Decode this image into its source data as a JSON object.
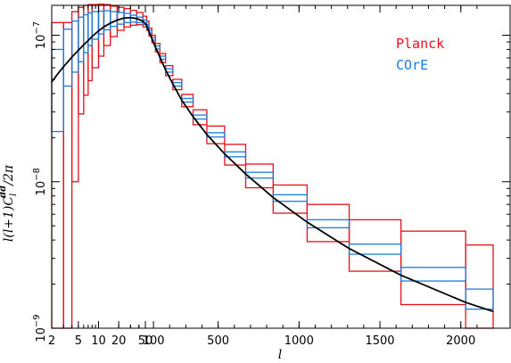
{
  "chart_data": {
    "type": "line",
    "xlabel": "l",
    "ylabel": "l(l+1)C_l^dd/2π",
    "ylabel_parts": {
      "main": "l(l+1)C",
      "sub": "l",
      "sup": "dd",
      "tail": "/2π"
    },
    "x_scale": "piecewise: log for l<50, linear for l>=50",
    "y_scale": "log",
    "xlim": [
      2,
      2200
    ],
    "ylim": [
      1e-09,
      1.6e-07
    ],
    "x_ticks": [
      {
        "value": 2,
        "label": "2"
      },
      {
        "value": 5,
        "label": "5"
      },
      {
        "value": 10,
        "label": "10"
      },
      {
        "value": 20,
        "label": "20"
      },
      {
        "value": 50,
        "label": "50"
      },
      {
        "value": 100,
        "label": "100"
      },
      {
        "value": 500,
        "label": "500"
      },
      {
        "value": 1000,
        "label": "1000"
      },
      {
        "value": 1500,
        "label": "1500"
      },
      {
        "value": 2000,
        "label": "2000"
      }
    ],
    "y_ticks": [
      {
        "value": 1e-09,
        "base": "10",
        "exp": "−9"
      },
      {
        "value": 1e-08,
        "base": "10",
        "exp": "−8"
      },
      {
        "value": 1e-07,
        "base": "10",
        "exp": "−7"
      }
    ],
    "grid": false,
    "legend": {
      "placement": "top-right"
    },
    "colors": {
      "planck": "#e8101a",
      "core": "#1a7de0",
      "theory": "#000000"
    },
    "series": [
      {
        "name": "Planck",
        "kind": "error-boxes",
        "boxes": [
          {
            "x": [
              2,
              3
            ],
            "y": [
              1e-09,
              1.22e-07
            ]
          },
          {
            "x": [
              3,
              4
            ],
            "y": [
              1e-09,
              1.22e-07
            ]
          },
          {
            "x": [
              4,
              5
            ],
            "y": [
              1e-08,
              1.45e-07
            ]
          },
          {
            "x": [
              5,
              6
            ],
            "y": [
              2.9e-08,
              1.55e-07
            ]
          },
          {
            "x": [
              6,
              7
            ],
            "y": [
              3.9e-08,
              1.6e-07
            ]
          },
          {
            "x": [
              7,
              8
            ],
            "y": [
              4.9e-08,
              1.62e-07
            ]
          },
          {
            "x": [
              8,
              10
            ],
            "y": [
              6e-08,
              1.62e-07
            ]
          },
          {
            "x": [
              10,
              12
            ],
            "y": [
              7.2e-08,
              1.63e-07
            ]
          },
          {
            "x": [
              12,
              15
            ],
            "y": [
              8.5e-08,
              1.62e-07
            ]
          },
          {
            "x": [
              15,
              19
            ],
            "y": [
              9.8e-08,
              1.58e-07
            ]
          },
          {
            "x": [
              19,
              24
            ],
            "y": [
              1.08e-07,
              1.55e-07
            ]
          },
          {
            "x": [
              24,
              30
            ],
            "y": [
              1.14e-07,
              1.52e-07
            ]
          },
          {
            "x": [
              30,
              37
            ],
            "y": [
              1.17e-07,
              1.48e-07
            ]
          },
          {
            "x": [
              37,
              46
            ],
            "y": [
              1.18e-07,
              1.43e-07
            ]
          },
          {
            "x": [
              46,
              58
            ],
            "y": [
              1.14e-07,
              1.35e-07
            ]
          },
          {
            "x": [
              58,
              72
            ],
            "y": [
              1.08e-07,
              1.25e-07
            ]
          },
          {
            "x": [
              72,
              90
            ],
            "y": [
              9.9e-08,
              1.12e-07
            ]
          },
          {
            "x": [
              90,
              112
            ],
            "y": [
              8.9e-08,
              1e-07
            ]
          },
          {
            "x": [
              112,
              140
            ],
            "y": [
              7.7e-08,
              8.8e-08
            ]
          },
          {
            "x": [
              140,
              175
            ],
            "y": [
              6.5e-08,
              7.5e-08
            ]
          },
          {
            "x": [
              175,
              220
            ],
            "y": [
              5.3e-08,
              6.2e-08
            ]
          },
          {
            "x": [
              220,
              275
            ],
            "y": [
              4.25e-08,
              5e-08
            ]
          },
          {
            "x": [
              275,
              345
            ],
            "y": [
              3.25e-08,
              3.95e-08
            ]
          },
          {
            "x": [
              345,
              430
            ],
            "y": [
              2.45e-08,
              3.1e-08
            ]
          },
          {
            "x": [
              430,
              540
            ],
            "y": [
              1.82e-08,
              2.4e-08
            ]
          },
          {
            "x": [
              540,
              670
            ],
            "y": [
              1.3e-08,
              1.8e-08
            ]
          },
          {
            "x": [
              670,
              840
            ],
            "y": [
              9.1e-09,
              1.32e-08
            ]
          },
          {
            "x": [
              840,
              1050
            ],
            "y": [
              6.1e-09,
              9.5e-09
            ]
          },
          {
            "x": [
              1050,
              1310
            ],
            "y": [
              3.9e-09,
              7e-09
            ]
          },
          {
            "x": [
              1310,
              1630
            ],
            "y": [
              2.45e-09,
              5.5e-09
            ]
          },
          {
            "x": [
              1630,
              2030
            ],
            "y": [
              1.45e-09,
              4.6e-09
            ]
          },
          {
            "x": [
              2030,
              2200
            ],
            "y": [
              1e-09,
              3.7e-09
            ]
          }
        ]
      },
      {
        "name": "COrE",
        "kind": "error-boxes",
        "boxes": [
          {
            "x": [
              2,
              3
            ],
            "y": [
              2.2e-08,
              8e-08
            ]
          },
          {
            "x": [
              3,
              4
            ],
            "y": [
              4.5e-08,
              1.1e-07
            ]
          },
          {
            "x": [
              4,
              5
            ],
            "y": [
              5.6e-08,
              1.25e-07
            ]
          },
          {
            "x": [
              5,
              6
            ],
            "y": [
              6.6e-08,
              1.33e-07
            ]
          },
          {
            "x": [
              6,
              7
            ],
            "y": [
              7.6e-08,
              1.38e-07
            ]
          },
          {
            "x": [
              7,
              8
            ],
            "y": [
              8.5e-08,
              1.42e-07
            ]
          },
          {
            "x": [
              8,
              10
            ],
            "y": [
              9.4e-08,
              1.45e-07
            ]
          },
          {
            "x": [
              10,
              12
            ],
            "y": [
              1.02e-07,
              1.46e-07
            ]
          },
          {
            "x": [
              12,
              15
            ],
            "y": [
              1.09e-07,
              1.47e-07
            ]
          },
          {
            "x": [
              15,
              19
            ],
            "y": [
              1.15e-07,
              1.45e-07
            ]
          },
          {
            "x": [
              19,
              24
            ],
            "y": [
              1.19e-07,
              1.43e-07
            ]
          },
          {
            "x": [
              24,
              30
            ],
            "y": [
              1.22e-07,
              1.41e-07
            ]
          },
          {
            "x": [
              30,
              37
            ],
            "y": [
              1.23e-07,
              1.37e-07
            ]
          },
          {
            "x": [
              37,
              46
            ],
            "y": [
              1.22e-07,
              1.33e-07
            ]
          },
          {
            "x": [
              46,
              58
            ],
            "y": [
              1.18e-07,
              1.27e-07
            ]
          },
          {
            "x": [
              58,
              72
            ],
            "y": [
              1.11e-07,
              1.18e-07
            ]
          },
          {
            "x": [
              72,
              90
            ],
            "y": [
              1.03e-07,
              1.08e-07
            ]
          },
          {
            "x": [
              90,
              112
            ],
            "y": [
              9.25e-08,
              9.65e-08
            ]
          },
          {
            "x": [
              112,
              140
            ],
            "y": [
              8.05e-08,
              8.45e-08
            ]
          },
          {
            "x": [
              140,
              175
            ],
            "y": [
              6.85e-08,
              7.2e-08
            ]
          },
          {
            "x": [
              175,
              220
            ],
            "y": [
              5.6e-08,
              5.9e-08
            ]
          },
          {
            "x": [
              220,
              275
            ],
            "y": [
              4.5e-08,
              4.75e-08
            ]
          },
          {
            "x": [
              275,
              345
            ],
            "y": [
              3.5e-08,
              3.7e-08
            ]
          },
          {
            "x": [
              345,
              430
            ],
            "y": [
              2.68e-08,
              2.85e-08
            ]
          },
          {
            "x": [
              430,
              540
            ],
            "y": [
              2.02e-08,
              2.16e-08
            ]
          },
          {
            "x": [
              540,
              670
            ],
            "y": [
              1.48e-08,
              1.6e-08
            ]
          },
          {
            "x": [
              670,
              840
            ],
            "y": [
              1.06e-08,
              1.16e-08
            ]
          },
          {
            "x": [
              840,
              1050
            ],
            "y": [
              7.35e-09,
              8.15e-09
            ]
          },
          {
            "x": [
              1050,
              1310
            ],
            "y": [
              4.85e-09,
              5.5e-09
            ]
          },
          {
            "x": [
              1310,
              1630
            ],
            "y": [
              3.2e-09,
              3.75e-09
            ]
          },
          {
            "x": [
              1630,
              2030
            ],
            "y": [
              2.1e-09,
              2.6e-09
            ]
          },
          {
            "x": [
              2030,
              2200
            ],
            "y": [
              1.35e-09,
              1.85e-09
            ]
          }
        ]
      },
      {
        "kind": "curve",
        "x": [
          2,
          2.5,
          3,
          3.5,
          4,
          5,
          6,
          7,
          8,
          10,
          12,
          15,
          19,
          24,
          30,
          37,
          46,
          58,
          72,
          90,
          112,
          140,
          175,
          220,
          275,
          345,
          430,
          540,
          670,
          840,
          1050,
          1310,
          1630,
          2030,
          2200
        ],
        "y": [
          4.8e-08,
          5.5e-08,
          6.1e-08,
          6.6e-08,
          7.1e-08,
          7.9e-08,
          8.6e-08,
          9.2e-08,
          9.8e-08,
          1.07e-07,
          1.14e-07,
          1.21e-07,
          1.27e-07,
          1.31e-07,
          1.32e-07,
          1.3e-07,
          1.25e-07,
          1.17e-07,
          1.06e-07,
          9.5e-08,
          8.3e-08,
          7.1e-08,
          5.8e-08,
          4.65e-08,
          3.6e-08,
          2.78e-08,
          2.1e-08,
          1.55e-08,
          1.13e-08,
          7.8e-09,
          5.3e-09,
          3.5e-09,
          2.3e-09,
          1.5e-09,
          1.3e-09
        ]
      }
    ]
  }
}
